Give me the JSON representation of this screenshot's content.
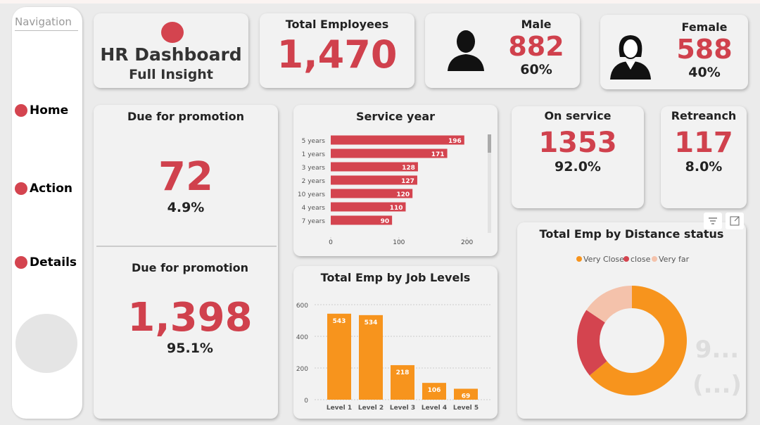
{
  "nav": {
    "title": "Navigation",
    "items": [
      "Home",
      "Action",
      "Details"
    ]
  },
  "header": {
    "title": "HR Dashboard",
    "subtitle": "Full Insight"
  },
  "total": {
    "label": "Total Employees",
    "value": "1,470"
  },
  "male": {
    "label": "Male",
    "value": "882",
    "share": "60%"
  },
  "female": {
    "label": "Female",
    "value": "588",
    "share": "40%"
  },
  "promotion": [
    {
      "label": "Due for promotion",
      "value": "72",
      "share": "4.9%"
    },
    {
      "label": "Due for promotion",
      "value": "1,398",
      "share": "95.1%"
    }
  ],
  "on_service": {
    "label": "On service",
    "value": "1353",
    "share": "92.0%"
  },
  "retrench": {
    "label": "Retreanch",
    "value": "117",
    "share": "8.0%"
  },
  "charts": [
    {
      "type": "hbar",
      "title": "Service year",
      "categories": [
        "5 years",
        "1 years",
        "3 years",
        "2 years",
        "10 years",
        "4 years",
        "7 years"
      ],
      "values": [
        196,
        171,
        128,
        127,
        120,
        110,
        90
      ],
      "color": "#d4444f",
      "xlim": [
        0,
        220
      ],
      "xticks": [
        0,
        100,
        200
      ]
    },
    {
      "type": "bar",
      "title": "Total Emp by Job Levels",
      "categories": [
        "Level 1",
        "Level 2",
        "Level 3",
        "Level 4",
        "Level 5"
      ],
      "values": [
        543,
        534,
        218,
        106,
        69
      ],
      "color": "#f7941d",
      "ylim": [
        0,
        600
      ],
      "yticks": [
        0,
        200,
        400,
        600
      ],
      "grid": true
    },
    {
      "type": "donut",
      "title": "Total Emp by Distance status",
      "categories": [
        "Very Close",
        "close",
        "Very far"
      ],
      "values": [
        941,
        300,
        229
      ],
      "colors": [
        "#f7941d",
        "#d4444f",
        "#f4c2ab"
      ],
      "legend": "top",
      "annotations": [
        "9...",
        "(...)"
      ]
    }
  ]
}
